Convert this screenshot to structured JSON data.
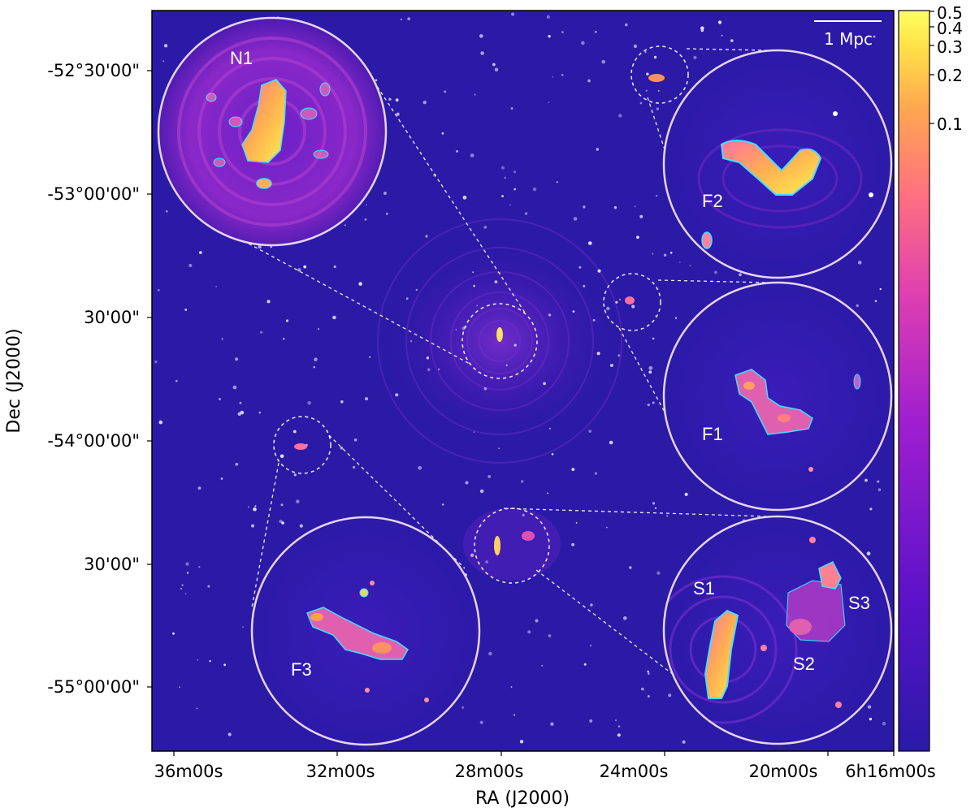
{
  "axes": {
    "xlabel": "RA (J2000)",
    "ylabel": "Dec (J2000)",
    "x_ticks": [
      "36m00s",
      "32m00s",
      "28m00s",
      "24m00s",
      "20m00s",
      "6h16m00s"
    ],
    "y_ticks": [
      "-52°30'00\"",
      "-53°00'00\"",
      "30'00\"",
      "-54°00'00\"",
      "30'00\"",
      "-55°00'00\""
    ]
  },
  "scale_bar": {
    "label": "1 Mpc"
  },
  "colorbar": {
    "ticks": [
      "0.5",
      "0.4",
      "0.3",
      "0.2",
      "0.1"
    ],
    "colors": [
      "#2a1aa8",
      "#5a12c8",
      "#a11fd0",
      "#e040b0",
      "#ff7080",
      "#ffa850",
      "#ffe048",
      "#ffff60"
    ]
  },
  "zoom_panels": [
    {
      "label": "N1"
    },
    {
      "label": "F2"
    },
    {
      "label": "F1"
    },
    {
      "label": "S1"
    },
    {
      "label": "S2"
    },
    {
      "label": "S3"
    },
    {
      "label": "F3"
    }
  ],
  "colors": {
    "background": "#2b1aa6",
    "circle": "#e6d4f0",
    "dashed": "#eeeeff"
  }
}
